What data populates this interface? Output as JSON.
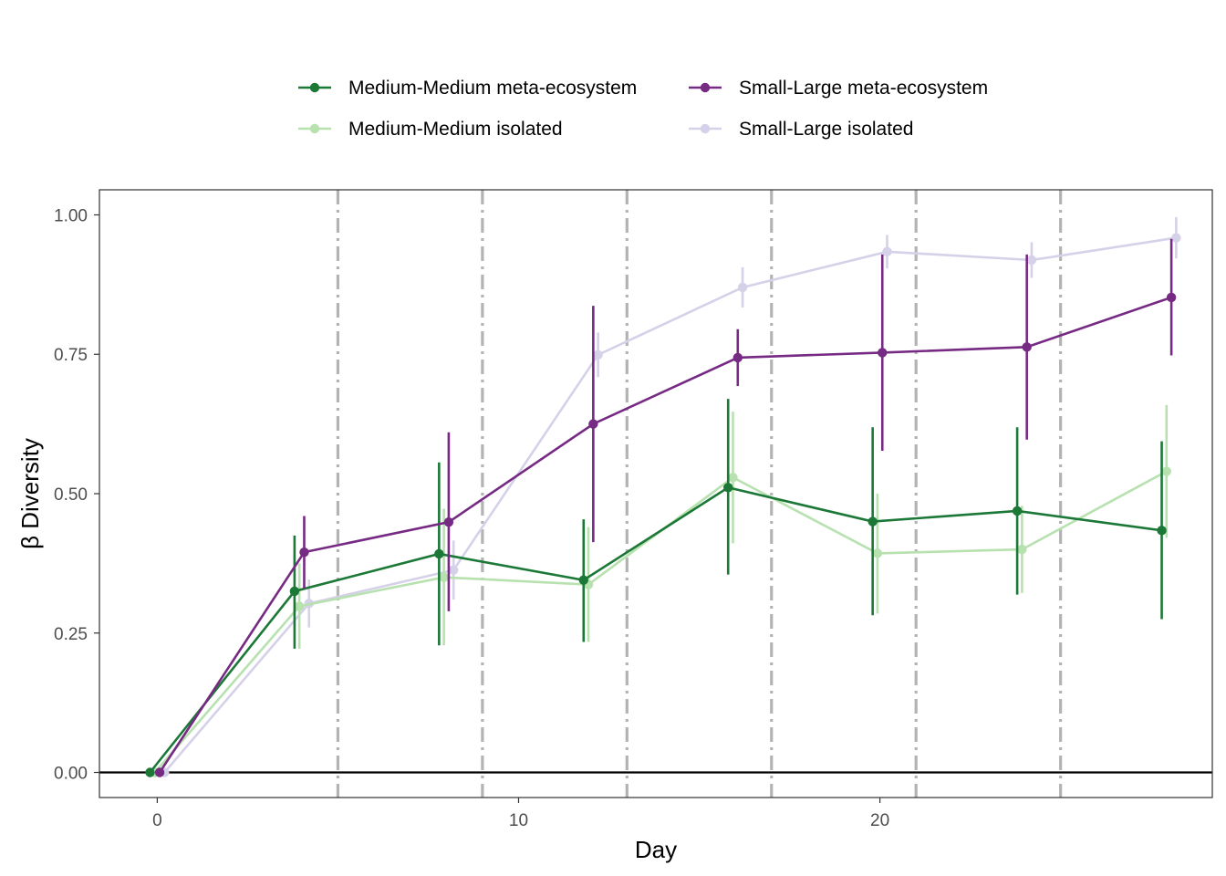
{
  "chart_data": {
    "type": "line",
    "xlabel": "Day",
    "ylabel": "β Diversity",
    "xlim": [
      -1.6,
      29.2
    ],
    "ylim": [
      -0.045,
      1.045
    ],
    "x_ticks": [
      0,
      10,
      20
    ],
    "x_tick_labels": [
      "0",
      "10",
      "20"
    ],
    "y_ticks": [
      0,
      0.25,
      0.5,
      0.75,
      1.0
    ],
    "y_tick_labels": [
      "0.00",
      "0.25",
      "0.50",
      "0.75",
      "1.00"
    ],
    "reference_hline": 0,
    "disturbance_vlines": [
      5,
      9,
      13,
      17,
      21,
      25
    ],
    "grid": false,
    "legend_position": "top",
    "series": [
      {
        "name": "Medium-Medium meta-ecosystem",
        "color": "#1b7837",
        "points": [
          {
            "x": -0.2,
            "y": 0.0,
            "lo": 0.0,
            "hi": 0.0
          },
          {
            "x": 3.8,
            "y": 0.325,
            "lo": 0.222,
            "hi": 0.425
          },
          {
            "x": 7.8,
            "y": 0.392,
            "lo": 0.228,
            "hi": 0.556
          },
          {
            "x": 11.8,
            "y": 0.345,
            "lo": 0.234,
            "hi": 0.454
          },
          {
            "x": 15.8,
            "y": 0.511,
            "lo": 0.355,
            "hi": 0.67
          },
          {
            "x": 19.8,
            "y": 0.45,
            "lo": 0.282,
            "hi": 0.619
          },
          {
            "x": 23.8,
            "y": 0.469,
            "lo": 0.319,
            "hi": 0.619
          },
          {
            "x": 27.8,
            "y": 0.434,
            "lo": 0.275,
            "hi": 0.594
          }
        ]
      },
      {
        "name": "Medium-Medium isolated",
        "color": "#b8e1b0",
        "points": [
          {
            "x": -0.067,
            "y": 0.0,
            "lo": 0.0,
            "hi": 0.0
          },
          {
            "x": 3.933,
            "y": 0.298,
            "lo": 0.222,
            "hi": 0.375
          },
          {
            "x": 7.933,
            "y": 0.35,
            "lo": 0.228,
            "hi": 0.473
          },
          {
            "x": 11.933,
            "y": 0.337,
            "lo": 0.234,
            "hi": 0.44
          },
          {
            "x": 15.933,
            "y": 0.529,
            "lo": 0.411,
            "hi": 0.647
          },
          {
            "x": 19.933,
            "y": 0.393,
            "lo": 0.285,
            "hi": 0.5
          },
          {
            "x": 23.933,
            "y": 0.4,
            "lo": 0.322,
            "hi": 0.478
          },
          {
            "x": 27.933,
            "y": 0.54,
            "lo": 0.421,
            "hi": 0.659
          }
        ]
      },
      {
        "name": "Small-Large meta-ecosystem",
        "color": "#762a83",
        "points": [
          {
            "x": 0.067,
            "y": 0.0,
            "lo": 0.0,
            "hi": 0.0
          },
          {
            "x": 4.067,
            "y": 0.395,
            "lo": 0.33,
            "hi": 0.46
          },
          {
            "x": 8.067,
            "y": 0.449,
            "lo": 0.289,
            "hi": 0.61
          },
          {
            "x": 12.067,
            "y": 0.625,
            "lo": 0.413,
            "hi": 0.837
          },
          {
            "x": 16.067,
            "y": 0.744,
            "lo": 0.693,
            "hi": 0.795
          },
          {
            "x": 20.067,
            "y": 0.753,
            "lo": 0.577,
            "hi": 0.929
          },
          {
            "x": 24.067,
            "y": 0.763,
            "lo": 0.597,
            "hi": 0.929
          },
          {
            "x": 28.067,
            "y": 0.852,
            "lo": 0.748,
            "hi": 0.957
          }
        ]
      },
      {
        "name": "Small-Large isolated",
        "color": "#d4d1e8",
        "points": [
          {
            "x": 0.2,
            "y": 0.0,
            "lo": 0.0,
            "hi": 0.0
          },
          {
            "x": 4.2,
            "y": 0.303,
            "lo": 0.26,
            "hi": 0.346
          },
          {
            "x": 8.2,
            "y": 0.363,
            "lo": 0.31,
            "hi": 0.416
          },
          {
            "x": 12.2,
            "y": 0.749,
            "lo": 0.709,
            "hi": 0.789
          },
          {
            "x": 16.2,
            "y": 0.87,
            "lo": 0.834,
            "hi": 0.906
          },
          {
            "x": 20.2,
            "y": 0.934,
            "lo": 0.904,
            "hi": 0.964
          },
          {
            "x": 24.2,
            "y": 0.919,
            "lo": 0.887,
            "hi": 0.951
          },
          {
            "x": 28.2,
            "y": 0.959,
            "lo": 0.922,
            "hi": 0.996
          }
        ]
      }
    ]
  }
}
